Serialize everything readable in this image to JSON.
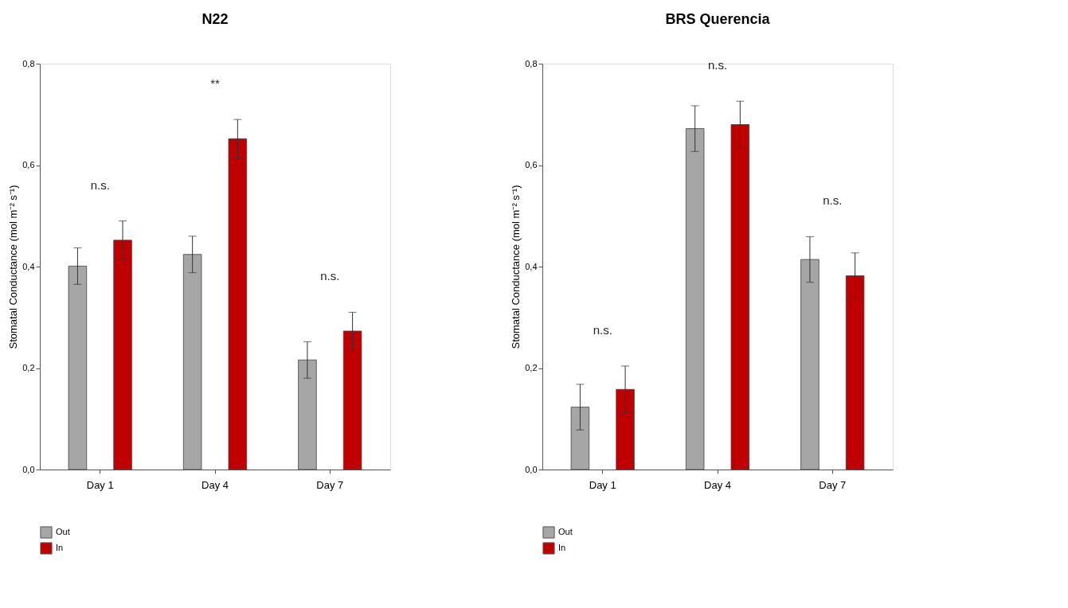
{
  "chart_data": [
    {
      "type": "bar",
      "title": "N22",
      "ylabel": "Stomatal Conductance (mol m⁻² s⁻¹)",
      "categories": [
        "Day 1",
        "Day 4",
        "Day 7"
      ],
      "series": [
        {
          "name": "Out",
          "color": "#a6a6a6",
          "values": [
            0.401,
            0.424,
            0.216
          ],
          "errors": [
            0.036,
            0.036,
            0.036
          ]
        },
        {
          "name": "In",
          "color": "#c00000",
          "values": [
            0.452,
            0.652,
            0.273
          ],
          "errors": [
            0.038,
            0.038,
            0.037
          ]
        }
      ],
      "ylim": [
        0,
        0.8
      ],
      "yticks": [
        {
          "value": 0,
          "label": "0,0"
        },
        {
          "value": 0.2,
          "label": "0,2"
        },
        {
          "value": 0.4,
          "label": "0,4"
        },
        {
          "value": 0.6,
          "label": "0,6"
        },
        {
          "value": 0.8,
          "label": "0,8"
        }
      ],
      "annotations": [
        "n.s.",
        "**",
        "n.s."
      ],
      "grid": false,
      "legend": "bottom left"
    },
    {
      "type": "bar",
      "title": "BRS Querencia",
      "ylabel": "Stomatal Conductance (mol m⁻² s⁻¹)",
      "categories": [
        "Day 1",
        "Day 4",
        "Day 7"
      ],
      "series": [
        {
          "name": "Out",
          "color": "#a6a6a6",
          "values": [
            0.123,
            0.672,
            0.414
          ],
          "errors": [
            0.045,
            0.045,
            0.045
          ]
        },
        {
          "name": "In",
          "color": "#c00000",
          "values": [
            0.158,
            0.68,
            0.382
          ],
          "errors": [
            0.046,
            0.046,
            0.045
          ]
        }
      ],
      "ylim": [
        0,
        0.8
      ],
      "yticks": [
        {
          "value": 0,
          "label": "0,0"
        },
        {
          "value": 0.2,
          "label": "0,2"
        },
        {
          "value": 0.4,
          "label": "0,4"
        },
        {
          "value": 0.6,
          "label": "0,6"
        },
        {
          "value": 0.8,
          "label": "0,8"
        }
      ],
      "annotations": [
        "n.s.",
        "n.s.",
        "n.s."
      ],
      "grid": false,
      "legend": "bottom left"
    }
  ]
}
